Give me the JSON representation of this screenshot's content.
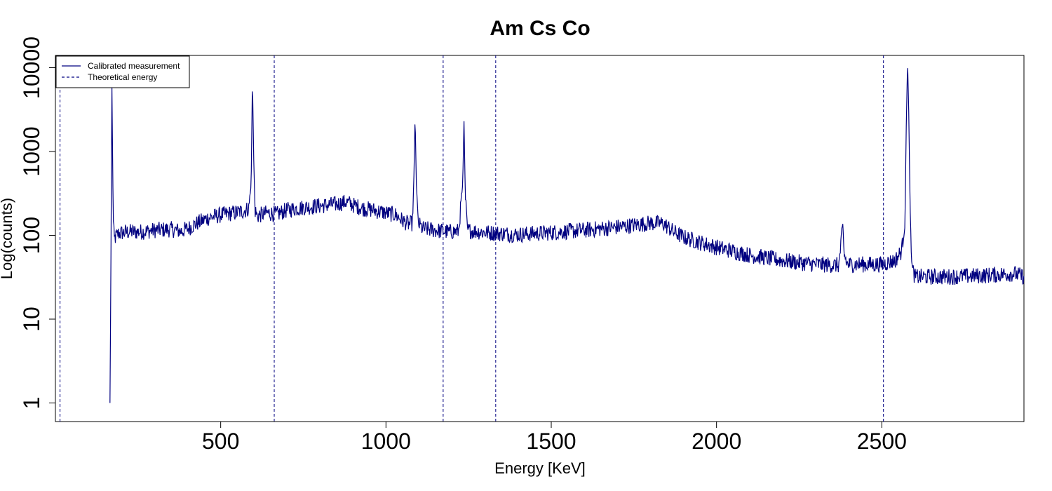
{
  "chart_data": {
    "type": "line",
    "title": "Am Cs Co",
    "xlabel": "Energy [KeV]",
    "ylabel": "Log(counts)",
    "xlim": [
      0,
      2930
    ],
    "ylim": [
      0.6,
      14000
    ],
    "log_y": true,
    "grid": false,
    "legend_position": "top-left",
    "x_ticks": [
      500,
      1000,
      1500,
      2000,
      2500
    ],
    "x_tick_labels": [
      "500",
      "1000",
      "1500",
      "2000",
      "2500"
    ],
    "y_ticks": [
      1,
      10,
      100,
      1000,
      10000
    ],
    "y_tick_labels": [
      "1",
      "10",
      "100",
      "1000",
      "10000"
    ],
    "colors": {
      "series": "#000080",
      "axes": "#000000"
    },
    "series": [
      {
        "name": "Calibrated measurement",
        "style": "solid",
        "points": [
          [
            165,
            1
          ],
          [
            167,
            12
          ],
          [
            169,
            300
          ],
          [
            171,
            5800
          ],
          [
            173,
            900
          ],
          [
            175,
            150
          ],
          [
            178,
            90
          ],
          [
            190,
            105
          ],
          [
            220,
            110
          ],
          [
            260,
            110
          ],
          [
            300,
            115
          ],
          [
            350,
            118
          ],
          [
            380,
            112
          ],
          [
            400,
            120
          ],
          [
            430,
            140
          ],
          [
            460,
            160
          ],
          [
            500,
            175
          ],
          [
            540,
            185
          ],
          [
            570,
            195
          ],
          [
            585,
            210
          ],
          [
            592,
            400
          ],
          [
            596,
            7500
          ],
          [
            600,
            800
          ],
          [
            604,
            200
          ],
          [
            610,
            170
          ],
          [
            640,
            185
          ],
          [
            670,
            178
          ],
          [
            700,
            200
          ],
          [
            750,
            215
          ],
          [
            800,
            225
          ],
          [
            850,
            235
          ],
          [
            880,
            250
          ],
          [
            900,
            230
          ],
          [
            930,
            210
          ],
          [
            960,
            200
          ],
          [
            1000,
            185
          ],
          [
            1030,
            175
          ],
          [
            1050,
            150
          ],
          [
            1070,
            135
          ],
          [
            1080,
            140
          ],
          [
            1085,
            600
          ],
          [
            1088,
            2700
          ],
          [
            1092,
            400
          ],
          [
            1097,
            140
          ],
          [
            1110,
            120
          ],
          [
            1150,
            115
          ],
          [
            1190,
            110
          ],
          [
            1220,
            112
          ],
          [
            1232,
            400
          ],
          [
            1236,
            2300
          ],
          [
            1240,
            300
          ],
          [
            1246,
            115
          ],
          [
            1300,
            108
          ],
          [
            1400,
            102
          ],
          [
            1500,
            108
          ],
          [
            1600,
            115
          ],
          [
            1700,
            125
          ],
          [
            1800,
            140
          ],
          [
            1840,
            138
          ],
          [
            1870,
            110
          ],
          [
            1900,
            95
          ],
          [
            1950,
            82
          ],
          [
            2000,
            72
          ],
          [
            2100,
            58
          ],
          [
            2200,
            50
          ],
          [
            2300,
            45
          ],
          [
            2370,
            44
          ],
          [
            2378,
            90
          ],
          [
            2382,
            125
          ],
          [
            2386,
            60
          ],
          [
            2395,
            45
          ],
          [
            2450,
            45
          ],
          [
            2500,
            45
          ],
          [
            2540,
            50
          ],
          [
            2560,
            65
          ],
          [
            2570,
            150
          ],
          [
            2574,
            2000
          ],
          [
            2578,
            12000
          ],
          [
            2582,
            2500
          ],
          [
            2586,
            150
          ],
          [
            2592,
            40
          ],
          [
            2600,
            32
          ],
          [
            2700,
            32
          ],
          [
            2800,
            33
          ],
          [
            2900,
            35
          ],
          [
            2930,
            32
          ]
        ]
      },
      {
        "name": "Theoretical energy",
        "style": "dashed",
        "x_values": [
          14,
          662,
          1173,
          1332,
          2505
        ]
      }
    ]
  }
}
